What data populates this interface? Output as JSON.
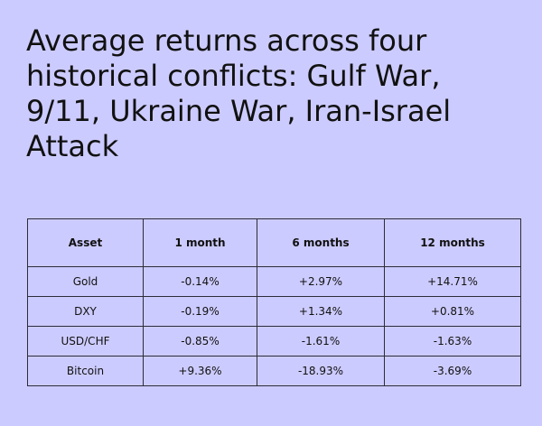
{
  "title": "Average returns across four historical conflicts: Gulf War, 9/11, Ukraine War, Iran-Israel Attack",
  "chart_data": {
    "type": "table",
    "title": "Average returns across four historical conflicts: Gulf War, 9/11, Ukraine War, Iran-Israel Attack",
    "columns": [
      "Asset",
      "1 month",
      "6 months",
      "12 months"
    ],
    "rows": [
      [
        "Gold",
        "-0.14%",
        "+2.97%",
        "+14.71%"
      ],
      [
        "DXY",
        "-0.19%",
        "+1.34%",
        "+0.81%"
      ],
      [
        "USD/CHF",
        "-0.85%",
        "-1.61%",
        "-1.63%"
      ],
      [
        "Bitcoin",
        "+9.36%",
        "-18.93%",
        "-3.69%"
      ]
    ],
    "values": {
      "1 month": [
        -0.14,
        -0.19,
        -0.85,
        9.36
      ],
      "6 months": [
        2.97,
        1.34,
        -1.61,
        -18.93
      ],
      "12 months": [
        14.71,
        0.81,
        -1.63,
        -3.69
      ]
    },
    "unit": "%"
  }
}
